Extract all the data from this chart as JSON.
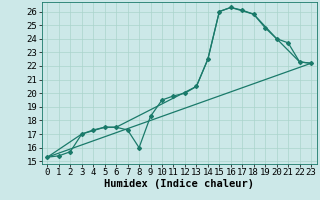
{
  "title": "",
  "xlabel": "Humidex (Indice chaleur)",
  "bg_color": "#cce8e8",
  "line_color": "#1a7a6a",
  "xlim": [
    -0.5,
    23.5
  ],
  "ylim": [
    14.8,
    26.7
  ],
  "xticks": [
    0,
    1,
    2,
    3,
    4,
    5,
    6,
    7,
    8,
    9,
    10,
    11,
    12,
    13,
    14,
    15,
    16,
    17,
    18,
    19,
    20,
    21,
    22,
    23
  ],
  "yticks": [
    15,
    16,
    17,
    18,
    19,
    20,
    21,
    22,
    23,
    24,
    25,
    26
  ],
  "series1_x": [
    0,
    1,
    2,
    3,
    4,
    5,
    6,
    7,
    8,
    9,
    10,
    11,
    12,
    13,
    14,
    15,
    16,
    17,
    18,
    19,
    20,
    21,
    22,
    23
  ],
  "series1_y": [
    15.3,
    15.4,
    15.7,
    17.0,
    17.3,
    17.5,
    17.5,
    17.3,
    16.0,
    18.3,
    19.5,
    19.8,
    20.0,
    20.5,
    22.5,
    26.0,
    26.3,
    26.1,
    25.8,
    24.8,
    24.0,
    23.7,
    22.3,
    22.2
  ],
  "series2_x": [
    0,
    3,
    5,
    6,
    13,
    14,
    15,
    16,
    18,
    20,
    22,
    23
  ],
  "series2_y": [
    15.3,
    17.0,
    17.5,
    17.5,
    20.5,
    22.5,
    26.0,
    26.3,
    25.8,
    24.0,
    22.3,
    22.2
  ],
  "series3_x": [
    0,
    23
  ],
  "series3_y": [
    15.3,
    22.2
  ],
  "grid_color": "#aad4cc",
  "label_fontsize": 7.5,
  "tick_fontsize": 6.5
}
